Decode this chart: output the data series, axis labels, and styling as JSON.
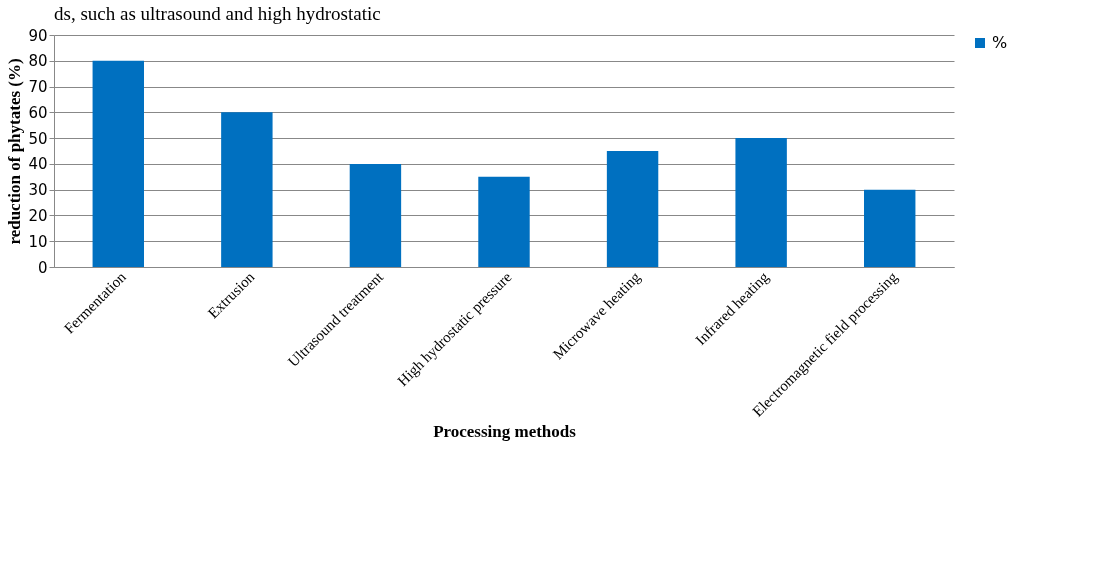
{
  "chart_data": {
    "type": "bar",
    "xlabel": "Processing methods",
    "ylabel": "reduction of phytates (%)",
    "categories": [
      "Fermentation",
      "Extrusion",
      "Ultrasound treatment",
      "High hydrostatic pressure",
      "Microwave heating",
      "Infrared heating",
      "Electromagnetic field processing"
    ],
    "series": [
      {
        "name": "%",
        "color": "#0070c0",
        "values": [
          80,
          60,
          40,
          35,
          45,
          50,
          30
        ]
      }
    ],
    "ylim": [
      0,
      90
    ],
    "yticks": [
      0,
      10,
      20,
      30,
      40,
      50,
      60,
      70,
      80,
      90
    ],
    "grid": "y",
    "legend": "right",
    "annotations": [
      "ds, such as ultrasound and high hydrostatic"
    ]
  }
}
